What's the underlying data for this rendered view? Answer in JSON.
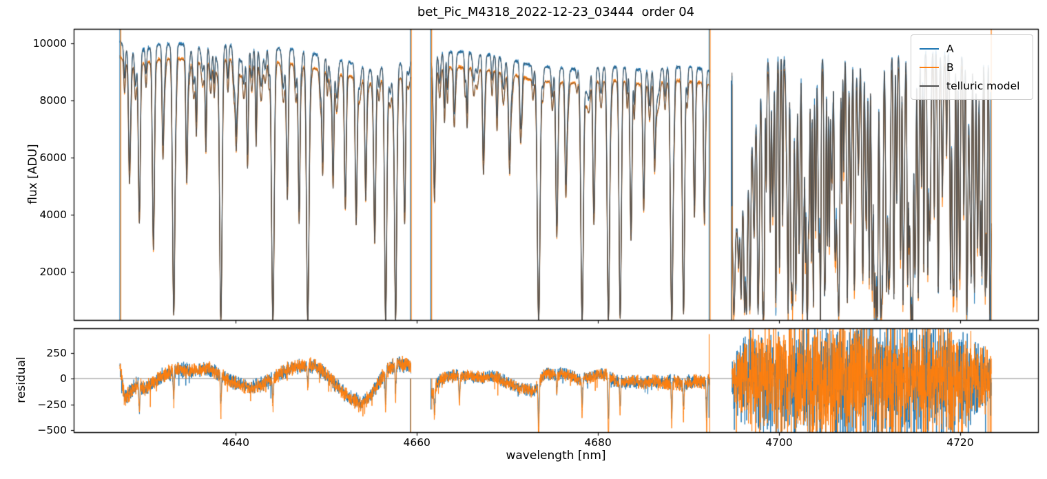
{
  "title": "bet_Pic_M4318_2022-12-23_03444  order 04",
  "axes": {
    "top": {
      "ylabel": "flux [ADU]",
      "ylim": [
        313,
        10506
      ],
      "xlim": [
        4622.1,
        4728.6
      ],
      "yticks": [
        {
          "v": 2000,
          "label": "2000"
        },
        {
          "v": 4000,
          "label": "4000"
        },
        {
          "v": 6000,
          "label": "6000"
        },
        {
          "v": 8000,
          "label": "8000"
        },
        {
          "v": 10000,
          "label": "10000"
        }
      ]
    },
    "bottom": {
      "ylabel": "residual",
      "xlabel": "wavelength [nm]",
      "ylim": [
        -520,
        487
      ],
      "yticks": [
        {
          "v": -500,
          "label": "−500"
        },
        {
          "v": -250,
          "label": "−250"
        },
        {
          "v": 0,
          "label": "0"
        },
        {
          "v": 250,
          "label": "250"
        }
      ],
      "xticks": [
        {
          "v": 4640,
          "label": "4640"
        },
        {
          "v": 4660,
          "label": "4660"
        },
        {
          "v": 4680,
          "label": "4680"
        },
        {
          "v": 4700,
          "label": "4700"
        },
        {
          "v": 4720,
          "label": "4720"
        }
      ]
    }
  },
  "legend": {
    "items": [
      {
        "label": "A",
        "color": "#1f77b4"
      },
      {
        "label": "B",
        "color": "#ff7f0e"
      },
      {
        "label": "telluric model",
        "color": "#4d4d4d"
      }
    ]
  },
  "colors": {
    "A": "#1f77b4",
    "B": "#ff7f0e",
    "model": "#4d4d4d",
    "spine": "#000000",
    "zero_line": "#777777",
    "background": "#ffffff"
  },
  "chart_data": {
    "type": "line",
    "title": "bet_Pic_M4318_2022-12-23_03444  order 04",
    "xlabel": "wavelength [nm]",
    "xlim": [
      4622.1,
      4728.6
    ],
    "panels": [
      {
        "name": "flux",
        "ylabel": "flux [ADU]",
        "ylim": [
          313,
          10506
        ],
        "series": [
          "A",
          "B",
          "telluric model"
        ]
      },
      {
        "name": "residual",
        "ylabel": "residual",
        "ylim": [
          -520,
          487
        ],
        "series": [
          "A residual",
          "B residual"
        ]
      }
    ],
    "segments": [
      [
        4627.2,
        4659.33
      ],
      [
        4661.58,
        4692.33
      ],
      [
        4694.8,
        4723.43
      ]
    ],
    "continuum_A": [
      [
        4627.2,
        10060
      ],
      [
        4628.0,
        9800
      ],
      [
        4629.0,
        9720
      ],
      [
        4630.0,
        9800
      ],
      [
        4631.5,
        9950
      ],
      [
        4633.0,
        9980
      ],
      [
        4634.5,
        9950
      ],
      [
        4636.0,
        9860
      ],
      [
        4637.5,
        9900
      ],
      [
        4639.0,
        9960
      ],
      [
        4640.5,
        9900
      ],
      [
        4642.0,
        9820
      ],
      [
        4643.5,
        9870
      ],
      [
        4645.0,
        9820
      ],
      [
        4646.5,
        9780
      ],
      [
        4648.0,
        9720
      ],
      [
        4649.5,
        9520
      ],
      [
        4651.0,
        9400
      ],
      [
        4652.5,
        9350
      ],
      [
        4654.0,
        9200
      ],
      [
        4655.5,
        9120
      ],
      [
        4657.0,
        9220
      ],
      [
        4658.5,
        9330
      ],
      [
        4659.33,
        9380
      ],
      [
        4661.58,
        9600
      ],
      [
        4663.0,
        9680
      ],
      [
        4665.0,
        9700
      ],
      [
        4667.0,
        9640
      ],
      [
        4669.0,
        9540
      ],
      [
        4671.0,
        9380
      ],
      [
        4673.0,
        9200
      ],
      [
        4675.0,
        9150
      ],
      [
        4677.0,
        9100
      ],
      [
        4679.0,
        9150
      ],
      [
        4681.0,
        9200
      ],
      [
        4683.0,
        9150
      ],
      [
        4685.0,
        9040
      ],
      [
        4687.0,
        9140
      ],
      [
        4689.0,
        9190
      ],
      [
        4691.0,
        9140
      ],
      [
        4692.33,
        9040
      ],
      [
        4694.8,
        9150
      ],
      [
        4697.0,
        9300
      ],
      [
        4699.0,
        9420
      ],
      [
        4701.0,
        9500
      ],
      [
        4703.0,
        9540
      ],
      [
        4705.0,
        9440
      ],
      [
        4707.0,
        9540
      ],
      [
        4709.0,
        9640
      ],
      [
        4711.0,
        9520
      ],
      [
        4713.0,
        9620
      ],
      [
        4715.0,
        9520
      ],
      [
        4717.0,
        9700
      ],
      [
        4719.0,
        9580
      ],
      [
        4721.0,
        9480
      ],
      [
        4723.43,
        9380
      ]
    ],
    "continuum_B": [
      [
        4627.2,
        9530
      ],
      [
        4628.0,
        9300
      ],
      [
        4629.0,
        9220
      ],
      [
        4630.0,
        9300
      ],
      [
        4631.5,
        9430
      ],
      [
        4633.0,
        9460
      ],
      [
        4634.5,
        9430
      ],
      [
        4636.0,
        9340
      ],
      [
        4637.5,
        9380
      ],
      [
        4639.0,
        9440
      ],
      [
        4640.5,
        9380
      ],
      [
        4642.0,
        9300
      ],
      [
        4643.5,
        9350
      ],
      [
        4645.0,
        9300
      ],
      [
        4646.5,
        9260
      ],
      [
        4648.0,
        9200
      ],
      [
        4649.5,
        9020
      ],
      [
        4651.0,
        8900
      ],
      [
        4652.5,
        8850
      ],
      [
        4654.0,
        8700
      ],
      [
        4655.5,
        8620
      ],
      [
        4657.0,
        8720
      ],
      [
        4658.5,
        8830
      ],
      [
        4659.33,
        8880
      ],
      [
        4661.58,
        9070
      ],
      [
        4663.0,
        9130
      ],
      [
        4665.0,
        9160
      ],
      [
        4667.0,
        9100
      ],
      [
        4669.0,
        9000
      ],
      [
        4671.0,
        8870
      ],
      [
        4673.0,
        8700
      ],
      [
        4675.0,
        8650
      ],
      [
        4677.0,
        8600
      ],
      [
        4679.0,
        8650
      ],
      [
        4681.0,
        8700
      ],
      [
        4683.0,
        8650
      ],
      [
        4685.0,
        8540
      ],
      [
        4687.0,
        8640
      ],
      [
        4689.0,
        8690
      ],
      [
        4691.0,
        8640
      ],
      [
        4692.33,
        8540
      ],
      [
        4694.8,
        8760
      ],
      [
        4697.0,
        8900
      ],
      [
        4699.0,
        9010
      ],
      [
        4701.0,
        9090
      ],
      [
        4703.0,
        9130
      ],
      [
        4705.0,
        9030
      ],
      [
        4707.0,
        9130
      ],
      [
        4709.0,
        9230
      ],
      [
        4711.0,
        9110
      ],
      [
        4713.0,
        9210
      ],
      [
        4715.0,
        9110
      ],
      [
        4717.0,
        9290
      ],
      [
        4719.0,
        9170
      ],
      [
        4721.0,
        9070
      ],
      [
        4723.43,
        8970
      ]
    ],
    "b_depth_power": 1.06,
    "band_edge": {
      "start": 4694.8,
      "full": 4699.0,
      "floor": 0.36
    },
    "telluric_lines": [
      [
        4628.25,
        0.4,
        0.1
      ],
      [
        4629.35,
        0.58,
        0.11
      ],
      [
        4630.9,
        0.64,
        0.11
      ],
      [
        4631.95,
        0.32,
        0.09
      ],
      [
        4633.15,
        0.94,
        0.13
      ],
      [
        4634.6,
        0.38,
        0.09
      ],
      [
        4635.65,
        0.26,
        0.08
      ],
      [
        4636.7,
        0.32,
        0.08
      ],
      [
        4638.35,
        0.96,
        0.13
      ],
      [
        4640.05,
        0.3,
        0.09
      ],
      [
        4641.3,
        0.38,
        0.09
      ],
      [
        4642.25,
        0.3,
        0.08
      ],
      [
        4644.1,
        0.97,
        0.14
      ],
      [
        4645.7,
        0.48,
        0.1
      ],
      [
        4647.0,
        0.58,
        0.1
      ],
      [
        4647.95,
        0.97,
        0.14
      ],
      [
        4649.6,
        0.38,
        0.09
      ],
      [
        4650.75,
        0.42,
        0.09
      ],
      [
        4652.1,
        0.48,
        0.11
      ],
      [
        4653.3,
        0.52,
        0.11
      ],
      [
        4654.35,
        0.46,
        0.1
      ],
      [
        4655.35,
        0.62,
        0.11
      ],
      [
        4656.55,
        0.97,
        0.12
      ],
      [
        4657.65,
        0.96,
        0.12
      ],
      [
        4658.65,
        0.55,
        0.1
      ],
      [
        4661.95,
        0.48,
        0.11
      ],
      [
        4663.05,
        0.2,
        0.08
      ],
      [
        4664.1,
        0.16,
        0.08
      ],
      [
        4665.55,
        0.22,
        0.08
      ],
      [
        4667.35,
        0.38,
        0.1
      ],
      [
        4668.85,
        0.22,
        0.08
      ],
      [
        4670.25,
        0.28,
        0.09
      ],
      [
        4671.45,
        0.24,
        0.09
      ],
      [
        4673.45,
        0.97,
        0.15
      ],
      [
        4675.45,
        0.58,
        0.11
      ],
      [
        4676.45,
        0.42,
        0.1
      ],
      [
        4678.25,
        0.97,
        0.14
      ],
      [
        4679.55,
        0.52,
        0.11
      ],
      [
        4681.15,
        0.96,
        0.13
      ],
      [
        4682.45,
        0.95,
        0.12
      ],
      [
        4683.65,
        0.62,
        0.11
      ],
      [
        4685.05,
        0.42,
        0.11
      ],
      [
        4686.25,
        0.32,
        0.09
      ],
      [
        4688.15,
        0.97,
        0.14
      ],
      [
        4689.45,
        0.93,
        0.12
      ],
      [
        4690.65,
        0.48,
        0.09
      ],
      [
        4691.75,
        0.52,
        0.09
      ]
    ],
    "weak_lines": {
      "range": [
        4627.2,
        4692.35
      ],
      "seed": 3,
      "mean_step": 0.75,
      "step_jitter": 0.5,
      "depth_range": [
        0.03,
        0.14
      ],
      "width_range": [
        0.07,
        0.15
      ]
    },
    "dense_lines": {
      "range": [
        4694.9,
        4723.4
      ],
      "seed": 7,
      "mean_step": 0.26,
      "step_jitter": 0.21,
      "depth_range": [
        0.3,
        0.98
      ],
      "width_range": [
        0.045,
        0.1
      ]
    },
    "noise": {
      "base_rel": 0.006,
      "dense_base_rel": 0.012,
      "dense_line_boost": 0.05
    },
    "flux_spikes": [
      {
        "w": 4627.25,
        "f0": 40,
        "f1": 10600,
        "s": "AB"
      },
      {
        "w": 4659.33,
        "f0": 40,
        "f1": 10600,
        "s": "AB"
      },
      {
        "w": 4661.58,
        "f0": 40,
        "f1": 10600,
        "s": "AB"
      },
      {
        "w": 4692.33,
        "f0": 40,
        "f1": 10600,
        "s": "AB"
      },
      {
        "w": 4694.72,
        "f0": 40,
        "f1": 8700,
        "s": "A"
      },
      {
        "w": 4694.8,
        "f0": 40,
        "f1": 4300,
        "s": "B"
      },
      {
        "w": 4723.43,
        "f0": 40,
        "f1": 10600,
        "s": "B"
      },
      {
        "w": 4723.37,
        "f0": 40,
        "f1": 8300,
        "s": "A"
      }
    ],
    "residual": {
      "wave": [
        [
          4627.3,
          80
        ],
        [
          4627.7,
          -200
        ],
        [
          4628.3,
          -130
        ],
        [
          4629,
          -60
        ],
        [
          4630,
          -100
        ],
        [
          4631,
          -40
        ],
        [
          4631.8,
          20
        ],
        [
          4632.8,
          60
        ],
        [
          4633.8,
          100
        ],
        [
          4634.8,
          70
        ],
        [
          4635.8,
          80
        ],
        [
          4636.8,
          100
        ],
        [
          4637.8,
          60
        ],
        [
          4638.8,
          0
        ],
        [
          4639.8,
          -40
        ],
        [
          4640.8,
          -70
        ],
        [
          4641.8,
          -90
        ],
        [
          4642.8,
          -60
        ],
        [
          4643.8,
          -10
        ],
        [
          4644.8,
          40
        ],
        [
          4645.8,
          90
        ],
        [
          4646.8,
          120
        ],
        [
          4647.8,
          130
        ],
        [
          4648.8,
          120
        ],
        [
          4649.8,
          60
        ],
        [
          4650.8,
          -40
        ],
        [
          4651.8,
          -130
        ],
        [
          4652.8,
          -200
        ],
        [
          4653.8,
          -250
        ],
        [
          4654.8,
          -180
        ],
        [
          4655.8,
          -40
        ],
        [
          4656.8,
          90
        ],
        [
          4657.8,
          150
        ],
        [
          4659.2,
          130
        ],
        [
          4661.6,
          -160
        ],
        [
          4662.3,
          -40
        ],
        [
          4663,
          10
        ],
        [
          4664,
          25
        ],
        [
          4665,
          20
        ],
        [
          4666,
          25
        ],
        [
          4667,
          10
        ],
        [
          4668,
          20
        ],
        [
          4669,
          0
        ],
        [
          4670,
          -40
        ],
        [
          4671,
          -80
        ],
        [
          4672,
          -110
        ],
        [
          4673,
          -120
        ],
        [
          4673.6,
          -20
        ],
        [
          4674.2,
          60
        ],
        [
          4675,
          40
        ],
        [
          4676,
          50
        ],
        [
          4677,
          30
        ],
        [
          4678,
          -20
        ],
        [
          4679,
          10
        ],
        [
          4680,
          40
        ],
        [
          4681,
          30
        ],
        [
          4682,
          -30
        ],
        [
          4683,
          -40
        ],
        [
          4684,
          -30
        ],
        [
          4685,
          -40
        ],
        [
          4686,
          -20
        ],
        [
          4687,
          -40
        ],
        [
          4688,
          -30
        ],
        [
          4689,
          -50
        ],
        [
          4690,
          -40
        ],
        [
          4691,
          -30
        ],
        [
          4692,
          -20
        ],
        [
          4692.8,
          60
        ],
        [
          4695,
          0
        ],
        [
          4700,
          -20
        ],
        [
          4710,
          -10
        ],
        [
          4720,
          -20
        ],
        [
          4723.4,
          -10
        ]
      ],
      "sigma": [
        [
          4627.2,
          60
        ],
        [
          4640,
          52
        ],
        [
          4650,
          55
        ],
        [
          4659.3,
          55
        ],
        [
          4661.6,
          48
        ],
        [
          4680,
          45
        ],
        [
          4692.3,
          55
        ],
        [
          4694.8,
          220
        ],
        [
          4697,
          360
        ],
        [
          4700,
          430
        ],
        [
          4710,
          450
        ],
        [
          4716,
          430
        ],
        [
          4720,
          390
        ],
        [
          4723.4,
          200
        ]
      ],
      "line_dips": [
        [
          4629.35,
          -220
        ],
        [
          4633.15,
          -260
        ],
        [
          4638.35,
          -320
        ],
        [
          4644.1,
          -260
        ],
        [
          4647.95,
          -200
        ],
        [
          4656.55,
          -330
        ],
        [
          4657.65,
          -290
        ],
        [
          4661.95,
          -240
        ],
        [
          4664.7,
          -260
        ],
        [
          4673.45,
          -500
        ],
        [
          4675.45,
          -200
        ],
        [
          4678.25,
          -300
        ],
        [
          4681.15,
          -500
        ],
        [
          4682.45,
          -260
        ],
        [
          4688.15,
          -340
        ],
        [
          4689.45,
          -280
        ],
        [
          4692.0,
          -420
        ]
      ],
      "spikes": [
        {
          "w": 4659.28,
          "r": -540,
          "s": "A"
        },
        {
          "w": 4659.33,
          "r": -560,
          "s": "B"
        },
        {
          "w": 4661.6,
          "r": -300,
          "s": "AB"
        },
        {
          "w": 4692.28,
          "r": 430,
          "s": "B"
        },
        {
          "w": 4692.33,
          "r": -560,
          "s": "B"
        },
        {
          "w": 4692.25,
          "r": -380,
          "s": "A"
        },
        {
          "w": 4723.37,
          "r": -360,
          "s": "A"
        },
        {
          "w": 4723.43,
          "r": -540,
          "s": "B"
        }
      ]
    }
  }
}
